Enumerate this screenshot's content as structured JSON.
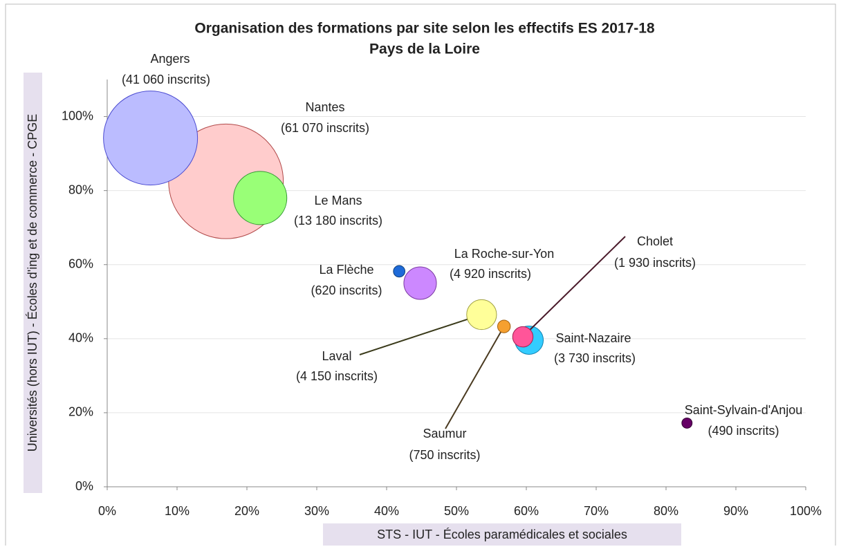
{
  "chart_data": {
    "type": "bubble",
    "title": "Organisation des formations par site selon les effectifs ES 2017-18",
    "subtitle": "Pays de la Loire",
    "x_label": "STS - IUT - Écoles paramédicales et sociales",
    "y_label": "Universités (hors IUT) - Écoles d'ing et de commerce - CPGE",
    "xlim": [
      0,
      100
    ],
    "ylim": [
      0,
      110
    ],
    "xticks": [
      {
        "value": 0,
        "label": "0%"
      },
      {
        "value": 10,
        "label": "10%"
      },
      {
        "value": 20,
        "label": "20%"
      },
      {
        "value": 30,
        "label": "30%"
      },
      {
        "value": 40,
        "label": "40%"
      },
      {
        "value": 50,
        "label": "50%"
      },
      {
        "value": 60,
        "label": "60%"
      },
      {
        "value": 70,
        "label": "70%"
      },
      {
        "value": 80,
        "label": "80%"
      },
      {
        "value": 90,
        "label": "90%"
      },
      {
        "value": 100,
        "label": "100%"
      }
    ],
    "yticks": [
      {
        "value": 0,
        "label": "0%"
      },
      {
        "value": 20,
        "label": "20%"
      },
      {
        "value": 40,
        "label": "40%"
      },
      {
        "value": 60,
        "label": "60%"
      },
      {
        "value": 80,
        "label": "80%"
      },
      {
        "value": 100,
        "label": "100%"
      }
    ],
    "grid": true,
    "points": [
      {
        "name": "Nantes",
        "x": 17.0,
        "y": 82.5,
        "size": 61070,
        "size_label": "(61 070 inscrits)",
        "color": "#ffcccc",
        "edge": "#b04848"
      },
      {
        "name": "Angers",
        "x": 6.2,
        "y": 94.2,
        "size": 41060,
        "size_label": "(41 060 inscrits)",
        "color": "#bbbcff",
        "edge": "#4a4ad0"
      },
      {
        "name": "Le Mans",
        "x": 21.9,
        "y": 78.0,
        "size": 13180,
        "size_label": "(13 180 inscrits)",
        "color": "#99ff77",
        "edge": "#339933"
      },
      {
        "name": "La Flèche",
        "x": 41.8,
        "y": 58.2,
        "size": 620,
        "size_label": "(620 inscrits)",
        "color": "#1e6ad8",
        "edge": "#10407a"
      },
      {
        "name": "La Roche-sur-Yon",
        "x": 44.8,
        "y": 55.0,
        "size": 4920,
        "size_label": "(4 920 inscrits)",
        "color": "#cc88ff",
        "edge": "#7a3aa0"
      },
      {
        "name": "Laval",
        "x": 53.6,
        "y": 46.5,
        "size": 4150,
        "size_label": "(4 150 inscrits)",
        "color": "#ffff99",
        "edge": "#a0a040"
      },
      {
        "name": "Saumur",
        "x": 56.8,
        "y": 43.3,
        "size": 750,
        "size_label": "(750 inscrits)",
        "color": "#f5a030",
        "edge": "#a06010"
      },
      {
        "name": "Saint-Nazaire",
        "x": 60.4,
        "y": 39.6,
        "size": 3730,
        "size_label": "(3 730 inscrits)",
        "color": "#33ccff",
        "edge": "#1080b0"
      },
      {
        "name": "Cholet",
        "x": 59.5,
        "y": 40.5,
        "size": 1930,
        "size_label": "(1 930 inscrits)",
        "color": "#ff5599",
        "edge": "#a02050"
      },
      {
        "name": "Saint-Sylvain-d'Anjou",
        "x": 83.0,
        "y": 17.2,
        "size": 490,
        "size_label": "(490 inscrits)",
        "color": "#660066",
        "edge": "#330033"
      }
    ]
  }
}
